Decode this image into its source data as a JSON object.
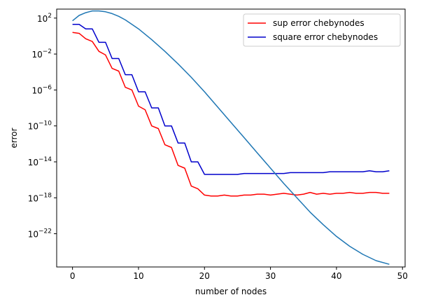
{
  "chart_data": {
    "type": "line",
    "xlabel": "number of nodes",
    "ylabel": "error",
    "xlim": [
      -2.4,
      50.4
    ],
    "ylim_log10": [
      -25.7,
      3.0
    ],
    "yscale": "log",
    "xticks": [
      0,
      10,
      20,
      30,
      40,
      50
    ],
    "yticks": [
      {
        "exp": 2,
        "base": "10",
        "label": "2"
      },
      {
        "exp": -2,
        "base": "10",
        "label": "−2"
      },
      {
        "exp": -6,
        "base": "10",
        "label": "−6"
      },
      {
        "exp": -10,
        "base": "10",
        "label": "−10"
      },
      {
        "exp": -14,
        "base": "10",
        "label": "−14"
      },
      {
        "exp": -18,
        "base": "10",
        "label": "−18"
      },
      {
        "exp": -22,
        "base": "10",
        "label": "−22"
      }
    ],
    "legend_position": "upper right",
    "grid": false,
    "series": [
      {
        "name": "sup error chebynodes",
        "color": "#ff0000",
        "x": [
          0,
          1,
          2,
          3,
          4,
          5,
          6,
          7,
          8,
          9,
          10,
          11,
          12,
          13,
          14,
          15,
          16,
          17,
          18,
          19,
          20,
          21,
          22,
          23,
          24,
          25,
          26,
          27,
          28,
          29,
          30,
          31,
          32,
          33,
          34,
          35,
          36,
          37,
          38,
          39,
          40,
          41,
          42,
          43,
          44,
          45,
          46,
          47,
          48
        ],
        "log10_y": [
          0.4,
          0.3,
          -0.3,
          -0.6,
          -1.7,
          -2.1,
          -3.6,
          -3.9,
          -5.7,
          -6.0,
          -7.8,
          -8.2,
          -10.0,
          -10.3,
          -12.1,
          -12.4,
          -14.4,
          -14.7,
          -16.7,
          -17.0,
          -17.7,
          -17.8,
          -17.8,
          -17.7,
          -17.8,
          -17.8,
          -17.7,
          -17.7,
          -17.6,
          -17.6,
          -17.7,
          -17.6,
          -17.5,
          -17.6,
          -17.7,
          -17.6,
          -17.4,
          -17.6,
          -17.5,
          -17.6,
          -17.5,
          -17.5,
          -17.4,
          -17.5,
          -17.5,
          -17.4,
          -17.4,
          -17.5,
          -17.5
        ]
      },
      {
        "name": "square error chebynodes",
        "color": "#0000cc",
        "x": [
          0,
          1,
          2,
          3,
          4,
          5,
          6,
          7,
          8,
          9,
          10,
          11,
          12,
          13,
          14,
          15,
          16,
          17,
          18,
          19,
          20,
          21,
          22,
          23,
          24,
          25,
          26,
          27,
          28,
          29,
          30,
          31,
          32,
          33,
          34,
          35,
          36,
          37,
          38,
          39,
          40,
          41,
          42,
          43,
          44,
          45,
          46,
          47,
          48
        ],
        "log10_y": [
          1.3,
          1.3,
          0.8,
          0.8,
          -0.7,
          -0.7,
          -2.5,
          -2.5,
          -4.3,
          -4.3,
          -6.2,
          -6.2,
          -8.0,
          -8.0,
          -10.0,
          -10.0,
          -11.9,
          -11.9,
          -14.0,
          -14.0,
          -15.4,
          -15.4,
          -15.4,
          -15.4,
          -15.4,
          -15.4,
          -15.3,
          -15.3,
          -15.3,
          -15.3,
          -15.3,
          -15.3,
          -15.3,
          -15.2,
          -15.2,
          -15.2,
          -15.2,
          -15.2,
          -15.2,
          -15.1,
          -15.1,
          -15.1,
          -15.1,
          -15.1,
          -15.1,
          -15.0,
          -15.1,
          -15.1,
          -15.0
        ]
      },
      {
        "name": "",
        "color": "#1f77b4",
        "x": [
          0,
          1,
          2,
          3,
          4,
          5,
          6,
          7,
          8,
          9,
          10,
          12,
          14,
          16,
          18,
          20,
          22,
          24,
          26,
          28,
          30,
          32,
          34,
          36,
          38,
          40,
          42,
          44,
          46,
          48
        ],
        "log10_y": [
          1.7,
          2.3,
          2.6,
          2.8,
          2.8,
          2.7,
          2.5,
          2.2,
          1.8,
          1.3,
          0.8,
          -0.4,
          -1.7,
          -3.1,
          -4.6,
          -6.2,
          -7.9,
          -9.6,
          -11.3,
          -13.0,
          -14.7,
          -16.4,
          -18.0,
          -19.6,
          -21.0,
          -22.3,
          -23.4,
          -24.3,
          -25.0,
          -25.4
        ]
      }
    ]
  }
}
